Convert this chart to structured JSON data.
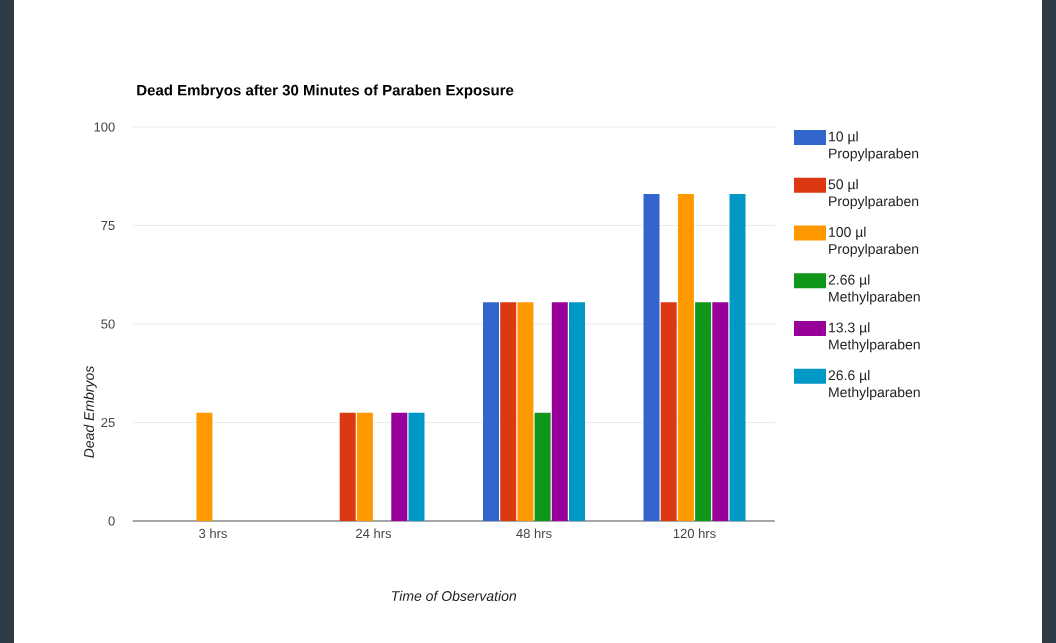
{
  "chart_data": {
    "type": "bar",
    "title": "Dead Embryos after 30 Minutes of Paraben Exposure",
    "xlabel": "Time of Observation",
    "ylabel": "Dead Embryos",
    "categories": [
      "3 hrs",
      "24 hrs",
      "48 hrs",
      "120 hrs"
    ],
    "series": [
      {
        "name": "10 µl Propylparaben",
        "color": "#3366cc",
        "values": [
          0,
          0,
          55.5,
          83
        ]
      },
      {
        "name": "50 µl Propylparaben",
        "color": "#dc3912",
        "values": [
          0,
          27.5,
          55.5,
          55.5
        ]
      },
      {
        "name": "100 µl Propylparaben",
        "color": "#ff9900",
        "values": [
          27.5,
          27.5,
          55.5,
          83
        ]
      },
      {
        "name": "2.66 µl Methylparaben",
        "color": "#109618",
        "values": [
          0,
          0,
          27.5,
          55.5
        ]
      },
      {
        "name": "13.3 µl Methylparaben",
        "color": "#990099",
        "values": [
          0,
          27.5,
          55.5,
          55.5
        ]
      },
      {
        "name": "26.6 µl Methylparaben",
        "color": "#0099c6",
        "values": [
          0,
          27.5,
          55.5,
          83
        ]
      }
    ],
    "ylim": [
      0,
      100
    ],
    "yticks": [
      0,
      25,
      50,
      75,
      100
    ],
    "grid": "y",
    "legend": "right"
  }
}
